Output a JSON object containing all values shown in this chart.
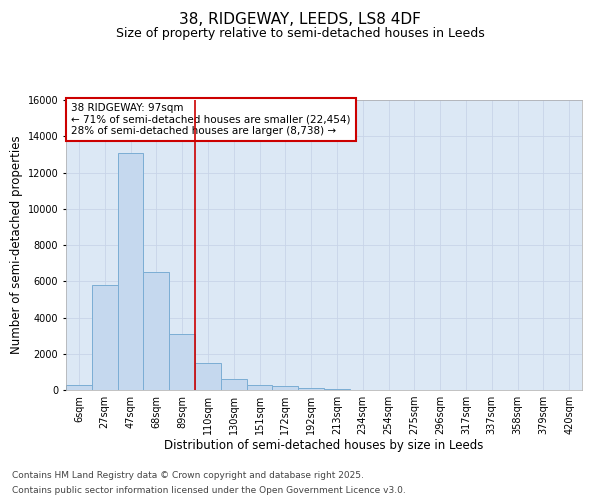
{
  "title_line1": "38, RIDGEWAY, LEEDS, LS8 4DF",
  "title_line2": "Size of property relative to semi-detached houses in Leeds",
  "xlabel": "Distribution of semi-detached houses by size in Leeds",
  "ylabel": "Number of semi-detached properties",
  "categories": [
    "6sqm",
    "27sqm",
    "47sqm",
    "68sqm",
    "89sqm",
    "110sqm",
    "130sqm",
    "151sqm",
    "172sqm",
    "192sqm",
    "213sqm",
    "234sqm",
    "254sqm",
    "275sqm",
    "296sqm",
    "317sqm",
    "337sqm",
    "358sqm",
    "379sqm",
    "420sqm"
  ],
  "values": [
    300,
    5800,
    13100,
    6500,
    3100,
    1500,
    600,
    300,
    200,
    100,
    50,
    20,
    5,
    5,
    5,
    5,
    5,
    5,
    5,
    5
  ],
  "bar_color": "#c5d8ee",
  "bar_edge_color": "#7badd4",
  "vline_color": "#cc0000",
  "vline_pos": 4.5,
  "annotation_text": "38 RIDGEWAY: 97sqm\n← 71% of semi-detached houses are smaller (22,454)\n28% of semi-detached houses are larger (8,738) →",
  "annotation_box_edgecolor": "#cc0000",
  "ylim": [
    0,
    16000
  ],
  "yticks": [
    0,
    2000,
    4000,
    6000,
    8000,
    10000,
    12000,
    14000,
    16000
  ],
  "grid_color": "#c8d4e8",
  "background_color": "#dce8f5",
  "footer_line1": "Contains HM Land Registry data © Crown copyright and database right 2025.",
  "footer_line2": "Contains public sector information licensed under the Open Government Licence v3.0.",
  "title_fontsize": 11,
  "subtitle_fontsize": 9,
  "axis_label_fontsize": 8.5,
  "tick_fontsize": 7,
  "annotation_fontsize": 7.5,
  "footer_fontsize": 6.5
}
